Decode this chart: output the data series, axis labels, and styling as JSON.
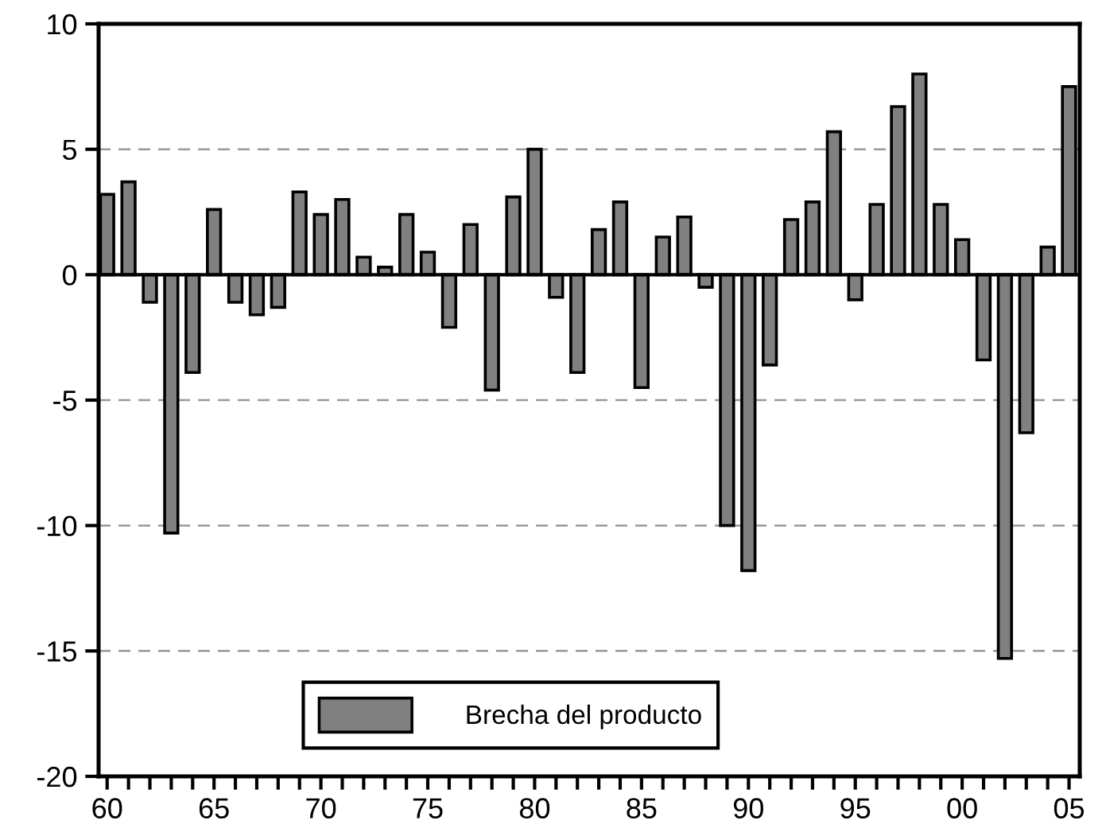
{
  "chart_data": {
    "type": "bar",
    "x": [
      1960,
      1961,
      1962,
      1963,
      1964,
      1965,
      1966,
      1967,
      1968,
      1969,
      1970,
      1971,
      1972,
      1973,
      1974,
      1975,
      1976,
      1977,
      1978,
      1979,
      1980,
      1981,
      1982,
      1983,
      1984,
      1985,
      1986,
      1987,
      1988,
      1989,
      1990,
      1991,
      1992,
      1993,
      1994,
      1995,
      1996,
      1997,
      1998,
      1999,
      2000,
      2001,
      2002,
      2003,
      2004,
      2005
    ],
    "series": [
      {
        "name": "Brecha del producto",
        "color": "#808080",
        "values": [
          3.2,
          3.7,
          -1.1,
          -10.3,
          -3.9,
          2.6,
          -1.1,
          -1.6,
          -1.3,
          3.3,
          2.4,
          3.0,
          0.7,
          0.3,
          2.4,
          0.9,
          -2.1,
          2.0,
          -4.6,
          3.1,
          5.0,
          -0.9,
          -3.9,
          1.8,
          2.9,
          -4.5,
          1.5,
          2.3,
          -0.5,
          -10.0,
          -11.8,
          -3.6,
          2.2,
          2.9,
          5.7,
          -1.0,
          2.8,
          6.7,
          8.0,
          2.8,
          1.4,
          -3.4,
          -15.3,
          -6.3,
          1.1,
          7.5
        ]
      }
    ],
    "xlim": [
      1959.6,
      2005.5
    ],
    "xticks": [
      {
        "value": 1960,
        "label": "60"
      },
      {
        "value": 1961,
        "label": null
      },
      {
        "value": 1962,
        "label": null
      },
      {
        "value": 1963,
        "label": null
      },
      {
        "value": 1964,
        "label": null
      },
      {
        "value": 1965,
        "label": "65"
      },
      {
        "value": 1966,
        "label": null
      },
      {
        "value": 1967,
        "label": null
      },
      {
        "value": 1968,
        "label": null
      },
      {
        "value": 1969,
        "label": null
      },
      {
        "value": 1970,
        "label": "70"
      },
      {
        "value": 1971,
        "label": null
      },
      {
        "value": 1972,
        "label": null
      },
      {
        "value": 1973,
        "label": null
      },
      {
        "value": 1974,
        "label": null
      },
      {
        "value": 1975,
        "label": "75"
      },
      {
        "value": 1976,
        "label": null
      },
      {
        "value": 1977,
        "label": null
      },
      {
        "value": 1978,
        "label": null
      },
      {
        "value": 1979,
        "label": null
      },
      {
        "value": 1980,
        "label": "80"
      },
      {
        "value": 1981,
        "label": null
      },
      {
        "value": 1982,
        "label": null
      },
      {
        "value": 1983,
        "label": null
      },
      {
        "value": 1984,
        "label": null
      },
      {
        "value": 1985,
        "label": "85"
      },
      {
        "value": 1986,
        "label": null
      },
      {
        "value": 1987,
        "label": null
      },
      {
        "value": 1988,
        "label": null
      },
      {
        "value": 1989,
        "label": null
      },
      {
        "value": 1990,
        "label": "90"
      },
      {
        "value": 1991,
        "label": null
      },
      {
        "value": 1992,
        "label": null
      },
      {
        "value": 1993,
        "label": null
      },
      {
        "value": 1994,
        "label": null
      },
      {
        "value": 1995,
        "label": "95"
      },
      {
        "value": 1996,
        "label": null
      },
      {
        "value": 1997,
        "label": null
      },
      {
        "value": 1998,
        "label": null
      },
      {
        "value": 1999,
        "label": null
      },
      {
        "value": 2000,
        "label": "00"
      },
      {
        "value": 2001,
        "label": null
      },
      {
        "value": 2002,
        "label": null
      },
      {
        "value": 2003,
        "label": null
      },
      {
        "value": 2004,
        "label": null
      },
      {
        "value": 2005,
        "label": "05"
      }
    ],
    "ylim": [
      -20,
      10
    ],
    "yticks": [
      -20,
      -15,
      -10,
      -5,
      0,
      5,
      10
    ],
    "grid": "y",
    "legend": "bottom"
  }
}
